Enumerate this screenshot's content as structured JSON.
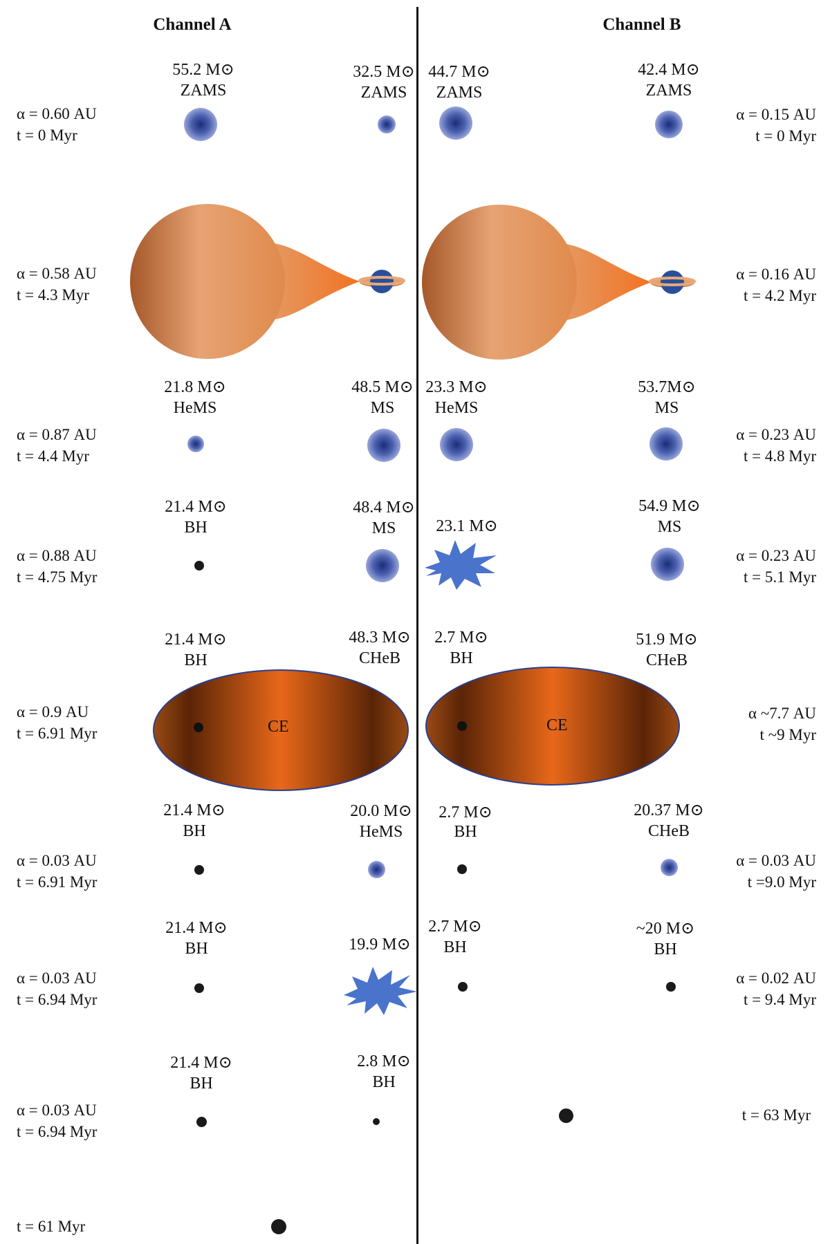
{
  "columns": {
    "a_title": "Channel A",
    "b_title": "Channel B"
  },
  "channel_a": {
    "rows": [
      {
        "sep": "α = 0.60 AU",
        "time": "t = 0 Myr",
        "primary": {
          "mass": "55.2 M⊙",
          "stage": "ZAMS"
        },
        "secondary": {
          "mass": "32.5 M⊙",
          "stage": "ZAMS"
        }
      },
      {
        "sep": "α = 0.58 AU",
        "time": "t = 4.3 Myr"
      },
      {
        "sep": "α = 0.87 AU",
        "time": "t = 4.4 Myr",
        "primary": {
          "mass": "21.8 M⊙",
          "stage": "HeMS"
        },
        "secondary": {
          "mass": "48.5 M⊙",
          "stage": "MS"
        }
      },
      {
        "sep": "α = 0.88 AU",
        "time": "t = 4.75 Myr",
        "primary": {
          "mass": "21.4 M⊙",
          "stage": "BH"
        },
        "secondary": {
          "mass": "48.4 M⊙",
          "stage": "MS"
        }
      },
      {
        "sep": "α = 0.9 AU",
        "time": "t = 6.91 Myr",
        "primary": {
          "mass": "21.4 M⊙",
          "stage": "BH"
        },
        "secondary": {
          "mass": "48.3 M⊙",
          "stage": "CHeB"
        },
        "envelope": "CE"
      },
      {
        "sep": "α = 0.03 AU",
        "time": "t = 6.91 Myr",
        "primary": {
          "mass": "21.4 M⊙",
          "stage": "BH"
        },
        "secondary": {
          "mass": "20.0 M⊙",
          "stage": "HeMS"
        }
      },
      {
        "sep": "α = 0.03 AU",
        "time": "t = 6.94 Myr",
        "primary": {
          "mass": "21.4 M⊙",
          "stage": "BH"
        },
        "secondary": {
          "mass": "19.9 M⊙",
          "stage": ""
        }
      },
      {
        "sep": "α = 0.03 AU",
        "time": "t = 6.94 Myr",
        "primary": {
          "mass": "21.4 M⊙",
          "stage": "BH"
        },
        "secondary": {
          "mass": "2.8 M⊙",
          "stage": "BH"
        }
      },
      {
        "sep": "",
        "time": "t = 61 Myr"
      }
    ]
  },
  "channel_b": {
    "rows": [
      {
        "sep": "α = 0.15 AU",
        "time": "t = 0 Myr",
        "primary": {
          "mass": "44.7 M⊙",
          "stage": "ZAMS"
        },
        "secondary": {
          "mass": "42.4 M⊙",
          "stage": "ZAMS"
        }
      },
      {
        "sep": "α = 0.16 AU",
        "time": "t = 4.2 Myr"
      },
      {
        "sep": "α = 0.23 AU",
        "time": "t = 4.8 Myr",
        "primary": {
          "mass": "23.3 M⊙",
          "stage": "HeMS"
        },
        "secondary": {
          "mass": "53.7M⊙",
          "stage": "MS"
        }
      },
      {
        "sep": "α = 0.23 AU",
        "time": "t = 5.1 Myr",
        "primary": {
          "mass": "23.1 M⊙",
          "stage": ""
        },
        "secondary": {
          "mass": "54.9 M⊙",
          "stage": "MS"
        }
      },
      {
        "sep": "α ~7.7 AU",
        "time": "t ~9 Myr",
        "primary": {
          "mass": "2.7 M⊙",
          "stage": "BH"
        },
        "secondary": {
          "mass": "51.9 M⊙",
          "stage": "CHeB"
        },
        "envelope": "CE"
      },
      {
        "sep": "α = 0.03 AU",
        "time": "t =9.0 Myr",
        "primary": {
          "mass": "2.7 M⊙",
          "stage": "BH"
        },
        "secondary": {
          "mass": "20.37 M⊙",
          "stage": "CHeB"
        }
      },
      {
        "sep": "α = 0.02 AU",
        "time": "t = 9.4 Myr",
        "primary": {
          "mass": "2.7 M⊙",
          "stage": "BH"
        },
        "secondary": {
          "mass": "~20 M⊙",
          "stage": "BH"
        }
      },
      {
        "sep": "",
        "time": "t = 63 Myr"
      }
    ]
  },
  "colors": {
    "star_core": "#1b2d78",
    "star_halo": "#aab5e3",
    "donor_light": "#e6a373",
    "donor_dark": "#a6582a",
    "stream": "#f07a2a",
    "accretor": "#2a4f9a",
    "supernova": "#4a73cc",
    "common_envelope_core": "#e8681a",
    "common_envelope_edge": "#6a2d08",
    "black_hole": "#1a1a1a",
    "divider": "#111111"
  },
  "icons": {
    "star": "radial-gradient-star-icon",
    "black_hole": "black-dot-icon",
    "supernova": "starburst-icon",
    "roche_lobe_overflow": "teardrop-donor-icon",
    "accretion_disk": "ringed-star-icon",
    "common_envelope": "ellipse-envelope-icon"
  }
}
